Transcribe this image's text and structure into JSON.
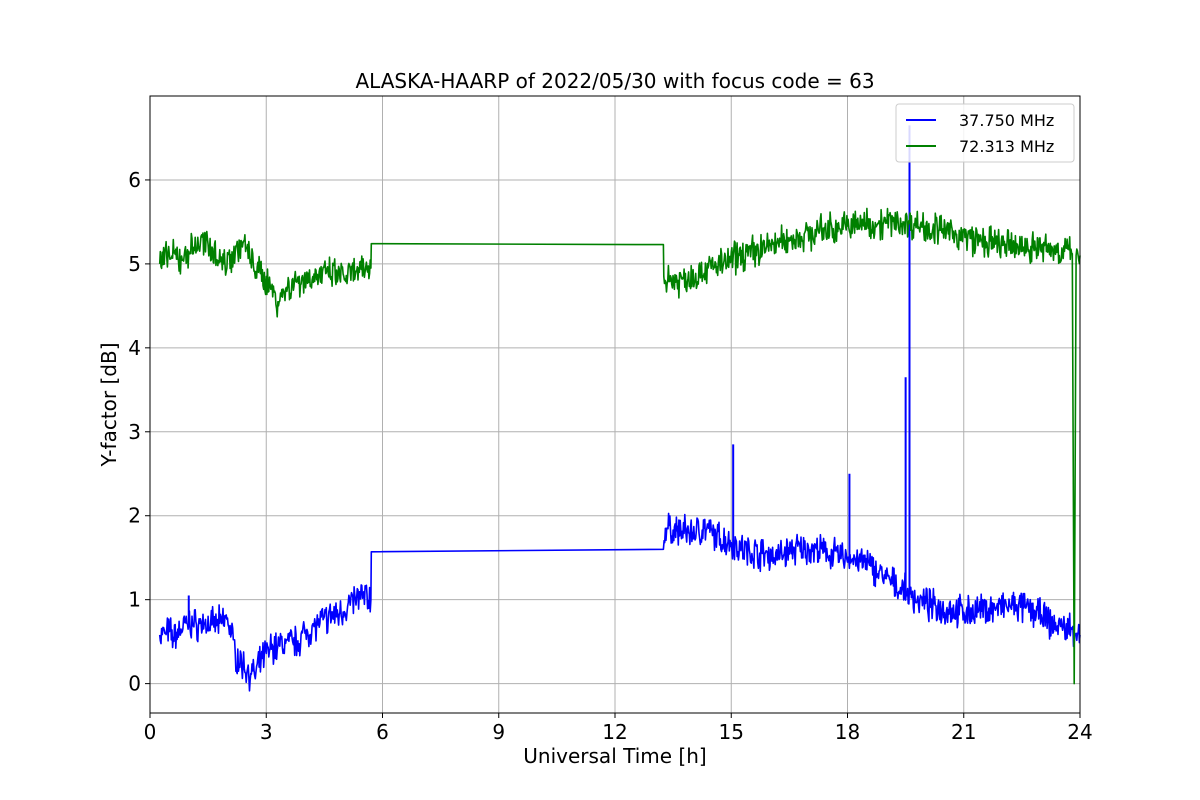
{
  "chart_data": {
    "type": "line",
    "title": "ALASKA-HAARP of 2022/05/30 with focus code = 63",
    "xlabel": "Universal Time [h]",
    "ylabel": "Y-factor [dB]",
    "xlim": [
      0,
      24
    ],
    "ylim": [
      -0.35,
      7.0
    ],
    "xticks": [
      0,
      3,
      6,
      9,
      12,
      15,
      18,
      21,
      24
    ],
    "yticks": [
      0,
      1,
      2,
      3,
      4,
      5,
      6
    ],
    "xtick_labels": [
      "0",
      "3",
      "6",
      "9",
      "12",
      "15",
      "18",
      "21",
      "24"
    ],
    "ytick_labels": [
      "0",
      "1",
      "2",
      "3",
      "4",
      "5",
      "6"
    ],
    "grid": true,
    "legend_position": "top-right",
    "series": [
      {
        "name": "37.750 MHz",
        "color": "#0000ff",
        "points": [
          [
            0.25,
            0.58
          ],
          [
            0.4,
            0.6
          ],
          [
            0.5,
            0.62
          ],
          [
            0.6,
            0.55
          ],
          [
            0.8,
            0.65
          ],
          [
            1.0,
            0.72
          ],
          [
            1.2,
            0.7
          ],
          [
            1.4,
            0.72
          ],
          [
            1.6,
            0.7
          ],
          [
            1.8,
            0.72
          ],
          [
            2.0,
            0.78
          ],
          [
            2.1,
            0.6
          ],
          [
            2.2,
            0.35
          ],
          [
            2.4,
            0.22
          ],
          [
            2.6,
            0.12
          ],
          [
            2.7,
            0.1
          ],
          [
            2.9,
            0.3
          ],
          [
            3.1,
            0.42
          ],
          [
            3.3,
            0.45
          ],
          [
            3.5,
            0.48
          ],
          [
            3.8,
            0.5
          ],
          [
            4.0,
            0.6
          ],
          [
            4.3,
            0.7
          ],
          [
            4.6,
            0.78
          ],
          [
            4.9,
            0.85
          ],
          [
            5.1,
            0.92
          ],
          [
            5.3,
            1.0
          ],
          [
            5.5,
            1.05
          ],
          [
            5.7,
            1.0
          ],
          [
            5.71,
            1.57
          ],
          [
            13.25,
            1.6
          ],
          [
            13.3,
            1.85
          ],
          [
            13.6,
            1.82
          ],
          [
            14.0,
            1.8
          ],
          [
            14.3,
            1.85
          ],
          [
            14.6,
            1.75
          ],
          [
            15.0,
            1.68
          ],
          [
            15.4,
            1.58
          ],
          [
            15.8,
            1.55
          ],
          [
            16.2,
            1.52
          ],
          [
            16.6,
            1.6
          ],
          [
            17.0,
            1.6
          ],
          [
            17.4,
            1.57
          ],
          [
            17.8,
            1.52
          ],
          [
            18.2,
            1.48
          ],
          [
            18.6,
            1.4
          ],
          [
            19.0,
            1.25
          ],
          [
            19.4,
            1.12
          ],
          [
            19.8,
            1.0
          ],
          [
            20.2,
            0.92
          ],
          [
            20.6,
            0.88
          ],
          [
            21.0,
            0.85
          ],
          [
            21.4,
            0.87
          ],
          [
            21.8,
            0.9
          ],
          [
            22.2,
            0.92
          ],
          [
            22.6,
            0.9
          ],
          [
            23.0,
            0.82
          ],
          [
            23.2,
            0.72
          ],
          [
            23.5,
            0.68
          ],
          [
            23.8,
            0.65
          ],
          [
            24.0,
            0.58
          ]
        ],
        "spikes": [
          [
            1.0,
            1.05
          ],
          [
            15.05,
            2.85
          ],
          [
            18.05,
            2.5
          ],
          [
            19.5,
            3.65
          ],
          [
            19.6,
            6.65
          ]
        ]
      },
      {
        "name": "72.313 MHz",
        "color": "#008000",
        "points": [
          [
            0.25,
            5.0
          ],
          [
            0.5,
            5.1
          ],
          [
            0.8,
            5.05
          ],
          [
            1.0,
            5.15
          ],
          [
            1.3,
            5.25
          ],
          [
            1.6,
            5.2
          ],
          [
            1.9,
            5.0
          ],
          [
            2.2,
            5.15
          ],
          [
            2.4,
            5.25
          ],
          [
            2.6,
            5.05
          ],
          [
            2.8,
            4.9
          ],
          [
            3.1,
            4.75
          ],
          [
            3.3,
            4.55
          ],
          [
            3.5,
            4.7
          ],
          [
            3.8,
            4.8
          ],
          [
            4.2,
            4.85
          ],
          [
            4.6,
            4.88
          ],
          [
            5.0,
            4.85
          ],
          [
            5.4,
            4.9
          ],
          [
            5.7,
            4.95
          ],
          [
            5.71,
            5.24
          ],
          [
            13.25,
            5.23
          ],
          [
            13.26,
            4.85
          ],
          [
            13.6,
            4.8
          ],
          [
            14.0,
            4.85
          ],
          [
            14.4,
            4.95
          ],
          [
            14.8,
            5.0
          ],
          [
            15.2,
            5.1
          ],
          [
            15.6,
            5.15
          ],
          [
            16.0,
            5.22
          ],
          [
            16.4,
            5.28
          ],
          [
            16.8,
            5.32
          ],
          [
            17.2,
            5.38
          ],
          [
            17.6,
            5.42
          ],
          [
            18.0,
            5.45
          ],
          [
            18.4,
            5.48
          ],
          [
            18.8,
            5.48
          ],
          [
            19.2,
            5.5
          ],
          [
            19.6,
            5.48
          ],
          [
            20.0,
            5.45
          ],
          [
            20.4,
            5.4
          ],
          [
            20.8,
            5.35
          ],
          [
            21.2,
            5.3
          ],
          [
            21.6,
            5.25
          ],
          [
            22.0,
            5.22
          ],
          [
            22.4,
            5.2
          ],
          [
            22.8,
            5.2
          ],
          [
            23.2,
            5.18
          ],
          [
            23.6,
            5.15
          ],
          [
            23.8,
            5.12
          ],
          [
            23.85,
            0.0
          ],
          [
            23.9,
            5.1
          ],
          [
            24.0,
            5.1
          ]
        ],
        "spikes": []
      }
    ]
  }
}
